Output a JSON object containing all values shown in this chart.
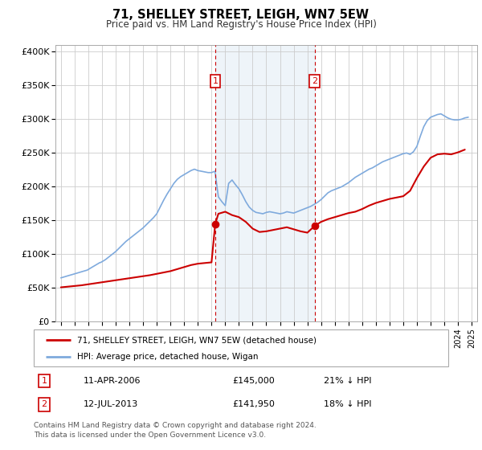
{
  "title": "71, SHELLEY STREET, LEIGH, WN7 5EW",
  "subtitle": "Price paid vs. HM Land Registry's House Price Index (HPI)",
  "ylabel_ticks": [
    "£0",
    "£50K",
    "£100K",
    "£150K",
    "£200K",
    "£250K",
    "£300K",
    "£350K",
    "£400K"
  ],
  "ytick_vals": [
    0,
    50000,
    100000,
    150000,
    200000,
    250000,
    300000,
    350000,
    400000
  ],
  "ylim": [
    0,
    410000
  ],
  "xlim_start": 1994.6,
  "xlim_end": 2025.4,
  "hpi_color": "#7faadd",
  "property_color": "#cc0000",
  "bg_color": "#deeaf5",
  "sale1_x": 2006.27,
  "sale1_y": 145000,
  "sale2_x": 2013.53,
  "sale2_y": 141950,
  "legend_line1": "71, SHELLEY STREET, LEIGH, WN7 5EW (detached house)",
  "legend_line2": "HPI: Average price, detached house, Wigan",
  "sale1_date": "11-APR-2006",
  "sale1_price": "£145,000",
  "sale1_note": "21% ↓ HPI",
  "sale2_date": "12-JUL-2013",
  "sale2_price": "£141,950",
  "sale2_note": "18% ↓ HPI",
  "footnote": "Contains HM Land Registry data © Crown copyright and database right 2024.\nThis data is licensed under the Open Government Licence v3.0.",
  "hpi_x": [
    1995.0,
    1995.08,
    1995.17,
    1995.25,
    1995.33,
    1995.42,
    1995.5,
    1995.58,
    1995.67,
    1995.75,
    1995.83,
    1995.92,
    1996.0,
    1996.08,
    1996.17,
    1996.25,
    1996.33,
    1996.42,
    1996.5,
    1996.58,
    1996.67,
    1996.75,
    1996.83,
    1996.92,
    1997.0,
    1997.08,
    1997.17,
    1997.25,
    1997.33,
    1997.42,
    1997.5,
    1997.58,
    1997.67,
    1997.75,
    1997.83,
    1997.92,
    1998.0,
    1998.25,
    1998.5,
    1998.75,
    1999.0,
    1999.25,
    1999.5,
    1999.75,
    2000.0,
    2000.25,
    2000.5,
    2000.75,
    2001.0,
    2001.25,
    2001.5,
    2001.75,
    2002.0,
    2002.25,
    2002.5,
    2002.75,
    2003.0,
    2003.25,
    2003.5,
    2003.75,
    2004.0,
    2004.25,
    2004.5,
    2004.75,
    2005.0,
    2005.25,
    2005.5,
    2005.75,
    2006.0,
    2006.25,
    2006.5,
    2006.75,
    2007.0,
    2007.25,
    2007.5,
    2007.75,
    2008.0,
    2008.25,
    2008.5,
    2008.75,
    2009.0,
    2009.25,
    2009.5,
    2009.75,
    2010.0,
    2010.25,
    2010.5,
    2010.75,
    2011.0,
    2011.25,
    2011.5,
    2011.75,
    2012.0,
    2012.25,
    2012.5,
    2012.75,
    2013.0,
    2013.25,
    2013.5,
    2013.75,
    2014.0,
    2014.25,
    2014.5,
    2014.75,
    2015.0,
    2015.25,
    2015.5,
    2015.75,
    2016.0,
    2016.25,
    2016.5,
    2016.75,
    2017.0,
    2017.25,
    2017.5,
    2017.75,
    2018.0,
    2018.25,
    2018.5,
    2018.75,
    2019.0,
    2019.25,
    2019.5,
    2019.75,
    2020.0,
    2020.25,
    2020.5,
    2020.75,
    2021.0,
    2021.25,
    2021.5,
    2021.75,
    2022.0,
    2022.25,
    2022.5,
    2022.75,
    2023.0,
    2023.25,
    2023.5,
    2023.75,
    2024.0,
    2024.25,
    2024.5,
    2024.75
  ],
  "hpi_y": [
    65000,
    65500,
    66000,
    66500,
    67000,
    67500,
    68000,
    68500,
    69000,
    69500,
    70000,
    70500,
    71000,
    71500,
    72000,
    72500,
    73000,
    73500,
    74000,
    74500,
    75000,
    75500,
    76000,
    76500,
    77500,
    78500,
    79500,
    80500,
    81500,
    82500,
    83500,
    84500,
    85500,
    86500,
    87500,
    88000,
    89000,
    92000,
    96000,
    100000,
    104000,
    109000,
    114000,
    119000,
    123000,
    127000,
    131000,
    135000,
    139000,
    144000,
    149000,
    154000,
    160000,
    170000,
    180000,
    189000,
    197000,
    205000,
    211000,
    215000,
    218000,
    221000,
    224000,
    226000,
    224000,
    223000,
    222000,
    221000,
    221000,
    223000,
    185000,
    178000,
    172000,
    205000,
    210000,
    203000,
    197000,
    188000,
    178000,
    170000,
    165000,
    162000,
    161000,
    160000,
    162000,
    163000,
    162000,
    161000,
    160000,
    161000,
    163000,
    162000,
    161000,
    163000,
    165000,
    167000,
    169000,
    171000,
    174000,
    177000,
    181000,
    186000,
    191000,
    194000,
    196000,
    198000,
    200000,
    203000,
    206000,
    210000,
    214000,
    217000,
    220000,
    223000,
    226000,
    228000,
    231000,
    234000,
    237000,
    239000,
    241000,
    243000,
    245000,
    247000,
    249000,
    250000,
    248000,
    252000,
    260000,
    275000,
    289000,
    298000,
    303000,
    305000,
    307000,
    308000,
    305000,
    302000,
    300000,
    299000,
    299000,
    300000,
    302000,
    303000
  ],
  "prop_x": [
    1995.0,
    1995.5,
    1996.0,
    1996.5,
    1997.0,
    1997.5,
    1998.0,
    1998.5,
    1999.0,
    1999.5,
    2000.0,
    2000.5,
    2001.0,
    2001.5,
    2002.0,
    2002.5,
    2003.0,
    2003.5,
    2004.0,
    2004.5,
    2005.0,
    2005.5,
    2006.0,
    2006.27,
    2006.5,
    2007.0,
    2007.5,
    2008.0,
    2008.5,
    2009.0,
    2009.5,
    2010.0,
    2010.5,
    2011.0,
    2011.5,
    2012.0,
    2012.5,
    2013.0,
    2013.53,
    2014.0,
    2014.5,
    2015.0,
    2015.5,
    2016.0,
    2016.5,
    2017.0,
    2017.5,
    2018.0,
    2018.5,
    2019.0,
    2019.5,
    2020.0,
    2020.5,
    2021.0,
    2021.5,
    2022.0,
    2022.5,
    2023.0,
    2023.5,
    2024.0,
    2024.5
  ],
  "prop_y": [
    51000,
    52000,
    53000,
    54000,
    55500,
    57000,
    58500,
    60000,
    61500,
    63000,
    64500,
    66000,
    67500,
    69000,
    71000,
    73000,
    75000,
    78000,
    81000,
    84000,
    86000,
    87000,
    88000,
    145000,
    160000,
    163000,
    158000,
    155000,
    148000,
    138000,
    133000,
    134000,
    136000,
    138000,
    140000,
    137000,
    134000,
    132000,
    141950,
    148000,
    152000,
    155000,
    158000,
    161000,
    163000,
    167000,
    172000,
    176000,
    179000,
    182000,
    184000,
    186000,
    194000,
    213000,
    230000,
    243000,
    248000,
    249000,
    248000,
    251000,
    255000
  ]
}
